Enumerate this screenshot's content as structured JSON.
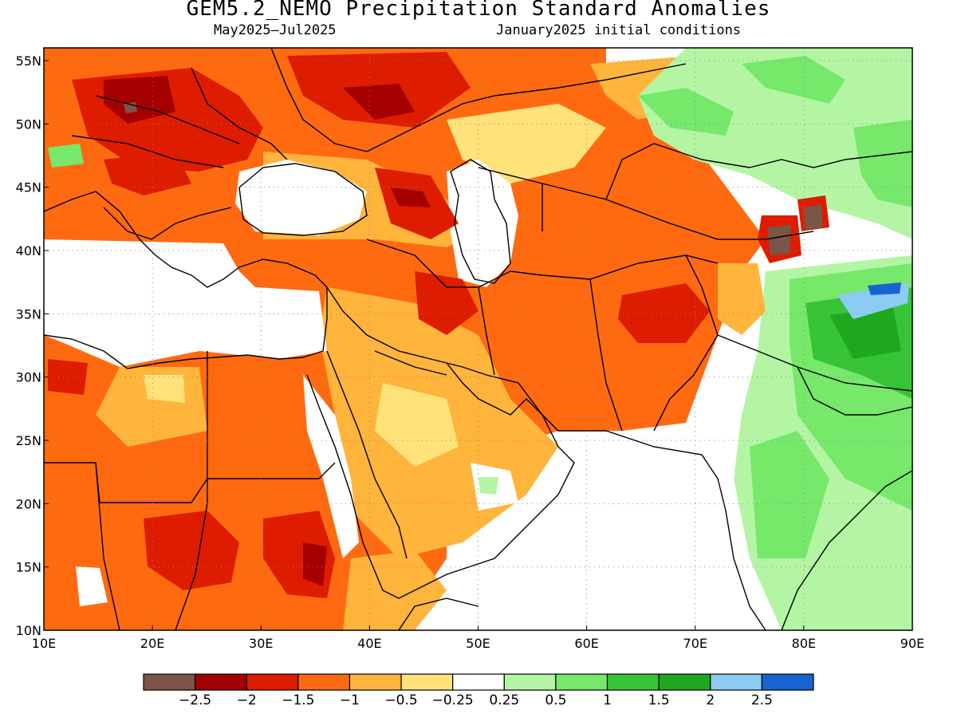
{
  "title": "GEM5.2_NEMO Precipitation Standard Anomalies",
  "subtitle_left": "May2025–Jul2025",
  "subtitle_right": "January2025 initial conditions",
  "lat_ticks": [
    "55N",
    "50N",
    "45N",
    "40N",
    "35N",
    "30N",
    "25N",
    "20N",
    "15N",
    "10N"
  ],
  "lon_ticks": [
    "10E",
    "20E",
    "30E",
    "40E",
    "50E",
    "60E",
    "70E",
    "80E",
    "90E"
  ],
  "colorbar": {
    "colors": [
      "#7a5548",
      "#a50000",
      "#dd1c00",
      "#ff6a10",
      "#ffb43c",
      "#ffe27a",
      "#ffffff",
      "#b4f5a4",
      "#76e86a",
      "#36c436",
      "#1ea81e",
      "#8ccbf4",
      "#1464d2"
    ],
    "labels": [
      "−2.5",
      "−2",
      "−1.5",
      "−1",
      "−0.5",
      "−0.25",
      "0.25",
      "0.5",
      "1",
      "1.5",
      "2",
      "2.5"
    ]
  }
}
